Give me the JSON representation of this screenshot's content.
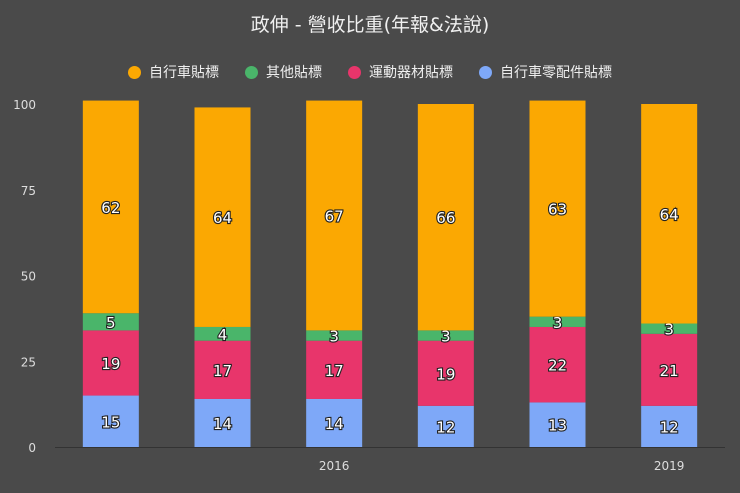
{
  "chart_data": {
    "type": "bar",
    "stacked": true,
    "title": "政伸 - 營收比重(年報&法說)",
    "categories": [
      "",
      "",
      "2016",
      "",
      "",
      "2019"
    ],
    "ylim": [
      0,
      100
    ],
    "yticks": [
      "0",
      "25",
      "50",
      "75",
      "100"
    ],
    "grid": false,
    "legend_position": "top",
    "series": [
      {
        "name": "自行車零配件貼標",
        "color": "#7ea8f8",
        "values": [
          15,
          14,
          14,
          12,
          13,
          12
        ]
      },
      {
        "name": "運動器材貼標",
        "color": "#e8356b",
        "values": [
          19,
          17,
          17,
          19,
          22,
          21
        ]
      },
      {
        "name": "其他貼標",
        "color": "#4ab56a",
        "values": [
          5,
          4,
          3,
          3,
          3,
          3
        ]
      },
      {
        "name": "自行車貼標",
        "color": "#fba802",
        "values": [
          62,
          64,
          67,
          66,
          63,
          64
        ]
      }
    ],
    "legend_order": [
      "自行車貼標",
      "其他貼標",
      "運動器材貼標",
      "自行車零配件貼標"
    ]
  }
}
